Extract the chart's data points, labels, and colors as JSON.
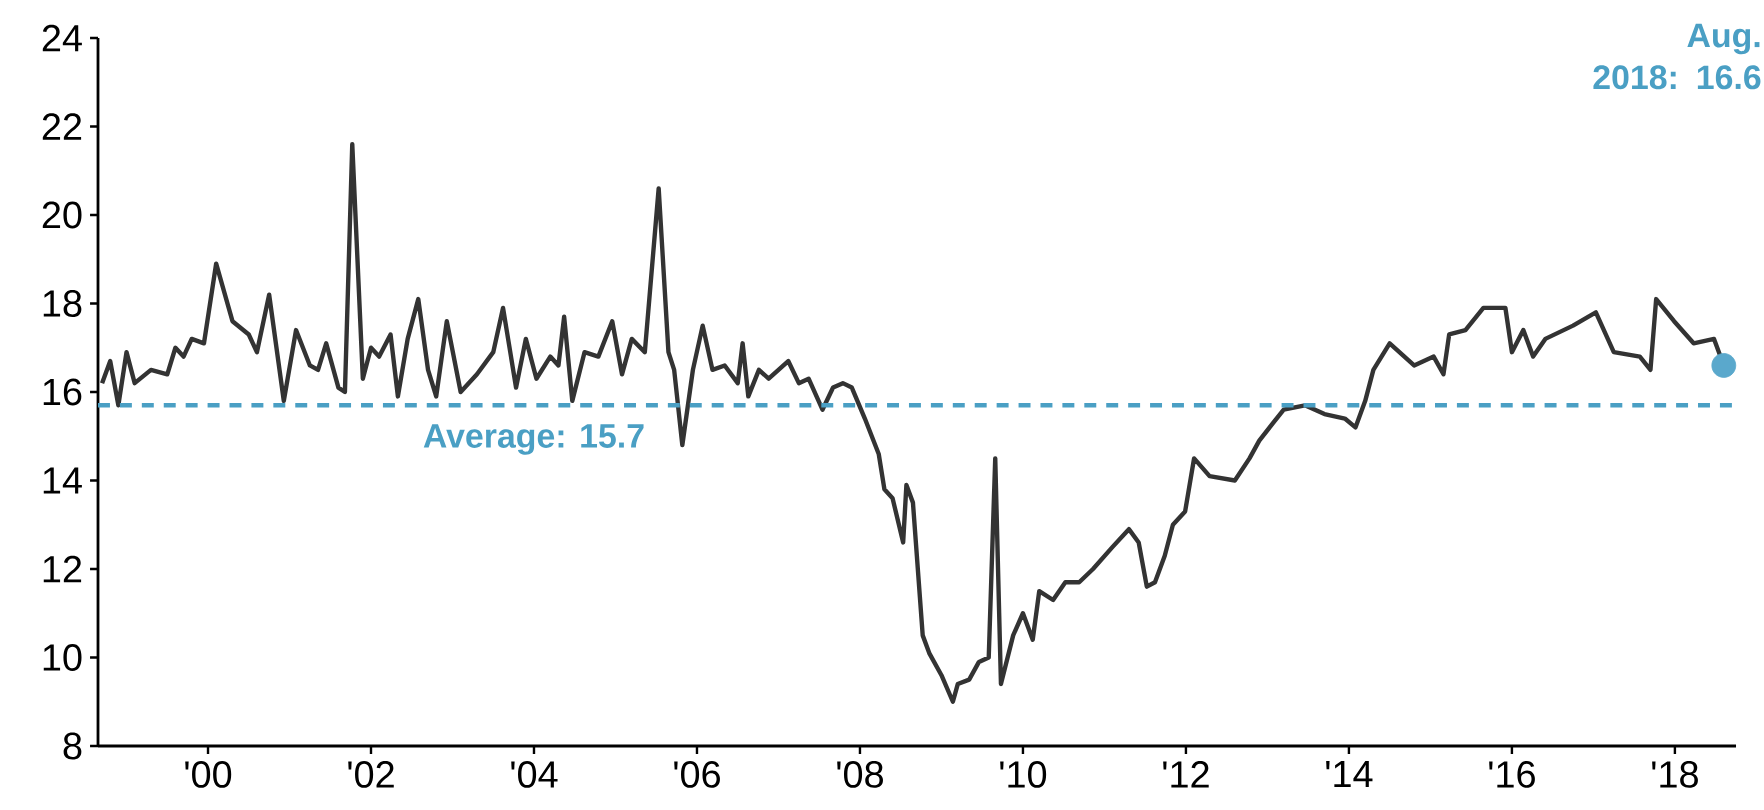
{
  "chart_data": {
    "type": "line",
    "x": [
      1998.7,
      1998.8,
      1998.9,
      1999.0,
      1999.1,
      1999.3,
      1999.5,
      1999.6,
      1999.7,
      1999.8,
      1999.95,
      2000.1,
      2000.3,
      2000.5,
      2000.6,
      2000.75,
      2000.93,
      2001.08,
      2001.25,
      2001.35,
      2001.45,
      2001.6,
      2001.68,
      2001.77,
      2001.9,
      2002.0,
      2002.1,
      2002.24,
      2002.33,
      2002.45,
      2002.58,
      2002.7,
      2002.8,
      2002.93,
      2003.1,
      2003.3,
      2003.5,
      2003.62,
      2003.78,
      2003.9,
      2004.03,
      2004.2,
      2004.3,
      2004.37,
      2004.47,
      2004.62,
      2004.79,
      2004.96,
      2005.08,
      2005.2,
      2005.36,
      2005.53,
      2005.65,
      2005.72,
      2005.82,
      2005.95,
      2006.07,
      2006.19,
      2006.34,
      2006.5,
      2006.56,
      2006.63,
      2006.76,
      2006.88,
      2007.12,
      2007.25,
      2007.37,
      2007.54,
      2007.67,
      2007.79,
      2007.9,
      2008.06,
      2008.23,
      2008.3,
      2008.4,
      2008.53,
      2008.57,
      2008.65,
      2008.77,
      2008.85,
      2009.0,
      2009.14,
      2009.2,
      2009.34,
      2009.46,
      2009.58,
      2009.66,
      2009.73,
      2009.88,
      2010.0,
      2010.12,
      2010.2,
      2010.37,
      2010.52,
      2010.69,
      2010.86,
      2011.1,
      2011.3,
      2011.42,
      2011.52,
      2011.62,
      2011.74,
      2011.84,
      2011.99,
      2012.1,
      2012.29,
      2012.6,
      2012.78,
      2012.9,
      2013.07,
      2013.2,
      2013.46,
      2013.7,
      2013.95,
      2014.08,
      2014.2,
      2014.3,
      2014.5,
      2014.8,
      2015.04,
      2015.16,
      2015.23,
      2015.43,
      2015.65,
      2015.92,
      2016.0,
      2016.14,
      2016.26,
      2016.41,
      2016.75,
      2017.03,
      2017.25,
      2017.57,
      2017.7,
      2017.77,
      2017.99,
      2018.23,
      2018.48,
      2018.6
    ],
    "series": [
      {
        "color": "#333333",
        "values": [
          16.2,
          16.7,
          15.7,
          16.9,
          16.2,
          16.5,
          16.4,
          17.0,
          16.8,
          17.2,
          17.1,
          18.9,
          17.6,
          17.3,
          16.9,
          18.2,
          15.8,
          17.4,
          16.6,
          16.5,
          17.1,
          16.1,
          16.0,
          21.6,
          16.3,
          17.0,
          16.8,
          17.3,
          15.9,
          17.2,
          18.1,
          16.5,
          15.9,
          17.6,
          16.0,
          16.4,
          16.9,
          17.9,
          16.1,
          17.2,
          16.3,
          16.8,
          16.6,
          17.7,
          15.8,
          16.9,
          16.8,
          17.6,
          16.4,
          17.2,
          16.9,
          20.6,
          16.9,
          16.5,
          14.8,
          16.5,
          17.5,
          16.5,
          16.6,
          16.2,
          17.1,
          15.9,
          16.5,
          16.3,
          16.7,
          16.2,
          16.3,
          15.6,
          16.1,
          16.2,
          16.1,
          15.4,
          14.6,
          13.8,
          13.6,
          12.6,
          13.9,
          13.5,
          10.5,
          10.1,
          9.6,
          9.0,
          9.4,
          9.5,
          9.9,
          10.0,
          14.5,
          9.4,
          10.5,
          11.0,
          10.4,
          11.5,
          11.3,
          11.7,
          11.7,
          12.0,
          12.5,
          12.9,
          12.6,
          11.6,
          11.7,
          12.3,
          13.0,
          13.3,
          14.5,
          14.1,
          14.0,
          14.5,
          14.9,
          15.3,
          15.6,
          15.7,
          15.5,
          15.4,
          15.2,
          15.8,
          16.5,
          17.1,
          16.6,
          16.8,
          16.4,
          17.3,
          17.4,
          17.9,
          17.9,
          16.9,
          17.4,
          16.8,
          17.2,
          17.5,
          17.8,
          16.9,
          16.8,
          16.5,
          18.1,
          17.6,
          17.1,
          17.2,
          16.6
        ]
      },
      {
        "type": "scatter",
        "color": "#5aa8cc",
        "x": [
          2018.6
        ],
        "values": [
          16.6
        ]
      }
    ],
    "xlim": [
      1998.65,
      2018.75
    ],
    "ylim": [
      8,
      24
    ],
    "xticks": [
      {
        "value": 2000,
        "label": "'00"
      },
      {
        "value": 2002,
        "label": "'02"
      },
      {
        "value": 2004,
        "label": "'04"
      },
      {
        "value": 2006,
        "label": "'06"
      },
      {
        "value": 2008,
        "label": "'08"
      },
      {
        "value": 2010,
        "label": "'10"
      },
      {
        "value": 2012,
        "label": "'12"
      },
      {
        "value": 2014,
        "label": "'14"
      },
      {
        "value": 2016,
        "label": "'16"
      },
      {
        "value": 2018,
        "label": "'18"
      }
    ],
    "yticks": [
      8,
      10,
      12,
      14,
      16,
      18,
      20,
      22,
      24
    ],
    "ref_lines": [
      {
        "axis": "y",
        "value": 15.7,
        "label": "Average: 15.7",
        "color": "#4a9fc4",
        "line_style": "dashed"
      }
    ],
    "annotations": [
      "Aug. 2018: 16.6"
    ]
  }
}
